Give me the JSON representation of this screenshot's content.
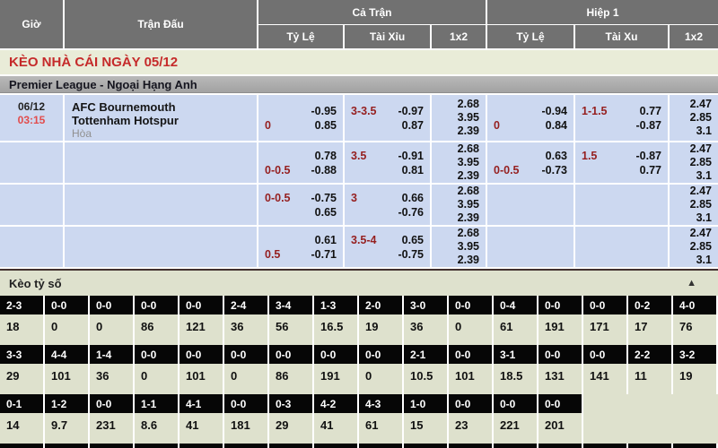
{
  "table_header": {
    "gio": "Giờ",
    "tran_dau": "Trận Đấu",
    "ca_tran": "Cả Trận",
    "hiep1": "Hiệp 1",
    "ca_tran_sub": {
      "ty_le": "Tỷ Lệ",
      "tai_xiu": "Tài Xỉu",
      "x2": "1x2"
    },
    "hiep1_sub": {
      "ty_le": "Tỷ Lệ",
      "tai_xu": "Tài Xu",
      "x2": "1x2"
    }
  },
  "banner": {
    "title": "KÈO NHÀ CÁI NGÀY 05/12"
  },
  "league": {
    "name": "Premier League - Ngoại Hạng Anh"
  },
  "matches": {
    "rows": [
      {
        "date": "06/12",
        "time": "03:15",
        "home": "AFC Bournemouth",
        "away": "Tottenham Hotspur",
        "draw_label": "Hòa",
        "ft_hdp": {
          "l1_left": "",
          "l1_right": "-0.95",
          "l2_left": "0",
          "l2_right": "0.85"
        },
        "ft_ou": {
          "l1_left": "3-3.5",
          "l1_right": "-0.97",
          "l2_left": "",
          "l2_right": "0.87"
        },
        "ft_1x2": [
          "2.68",
          "3.95",
          "2.39"
        ],
        "h1_hdp": {
          "l1_left": "",
          "l1_right": "-0.94",
          "l2_left": "0",
          "l2_right": "0.84"
        },
        "h1_ou": {
          "l1_left": "1-1.5",
          "l1_right": "0.77",
          "l2_left": "",
          "l2_right": "-0.87"
        },
        "h1_1x2": [
          "2.47",
          "2.85",
          "3.1"
        ]
      },
      {
        "date": "",
        "time": "",
        "home": "",
        "away": "",
        "draw_label": "",
        "ft_hdp": {
          "l1_left": "",
          "l1_right": "0.78",
          "l2_left": "0-0.5",
          "l2_right": "-0.88"
        },
        "ft_ou": {
          "l1_left": "3.5",
          "l1_right": "-0.91",
          "l2_left": "",
          "l2_right": "0.81"
        },
        "ft_1x2": [
          "2.68",
          "3.95",
          "2.39"
        ],
        "h1_hdp": {
          "l1_left": "",
          "l1_right": "0.63",
          "l2_left": "0-0.5",
          "l2_right": "-0.73"
        },
        "h1_ou": {
          "l1_left": "1.5",
          "l1_right": "-0.87",
          "l2_left": "",
          "l2_right": "0.77"
        },
        "h1_1x2": [
          "2.47",
          "2.85",
          "3.1"
        ]
      },
      {
        "date": "",
        "time": "",
        "home": "",
        "away": "",
        "draw_label": "",
        "ft_hdp": {
          "l1_left": "0-0.5",
          "l1_right": "-0.75",
          "l2_left": "",
          "l2_right": "0.65"
        },
        "ft_ou": {
          "l1_left": "3",
          "l1_right": "0.66",
          "l2_left": "",
          "l2_right": "-0.76"
        },
        "ft_1x2": [
          "2.68",
          "3.95",
          "2.39"
        ],
        "h1_hdp": {
          "l1_left": "",
          "l1_right": "",
          "l2_left": "",
          "l2_right": ""
        },
        "h1_ou": {
          "l1_left": "",
          "l1_right": "",
          "l2_left": "",
          "l2_right": ""
        },
        "h1_1x2": [
          "2.47",
          "2.85",
          "3.1"
        ]
      },
      {
        "date": "",
        "time": "",
        "home": "",
        "away": "",
        "draw_label": "",
        "ft_hdp": {
          "l1_left": "",
          "l1_right": "0.61",
          "l2_left": "0.5",
          "l2_right": "-0.71"
        },
        "ft_ou": {
          "l1_left": "3.5-4",
          "l1_right": "0.65",
          "l2_left": "",
          "l2_right": "-0.75"
        },
        "ft_1x2": [
          "2.68",
          "3.95",
          "2.39"
        ],
        "h1_hdp": {
          "l1_left": "",
          "l1_right": "",
          "l2_left": "",
          "l2_right": ""
        },
        "h1_ou": {
          "l1_left": "",
          "l1_right": "",
          "l2_left": "",
          "l2_right": ""
        },
        "h1_1x2": [
          "2.47",
          "2.85",
          "3.1"
        ]
      }
    ]
  },
  "score_section": {
    "title": "Kèo tỷ số",
    "collapse_icon": "▲",
    "rows": [
      {
        "scores": [
          "2-3",
          "0-0",
          "0-0",
          "0-0",
          "0-0",
          "2-4",
          "3-4",
          "1-3",
          "2-0",
          "3-0",
          "0-0",
          "0-4",
          "0-0",
          "0-0",
          "0-2",
          "4-0"
        ],
        "values": [
          "18",
          "0",
          "0",
          "86",
          "121",
          "36",
          "56",
          "16.5",
          "19",
          "36",
          "0",
          "61",
          "191",
          "171",
          "17",
          "76"
        ]
      },
      {
        "scores": [
          "3-3",
          "4-4",
          "1-4",
          "0-0",
          "0-0",
          "0-0",
          "0-0",
          "0-0",
          "0-0",
          "2-1",
          "0-0",
          "3-1",
          "0-0",
          "0-0",
          "2-2",
          "3-2"
        ],
        "values": [
          "29",
          "101",
          "36",
          "0",
          "101",
          "0",
          "86",
          "191",
          "0",
          "10.5",
          "101",
          "18.5",
          "131",
          "141",
          "11",
          "19"
        ]
      },
      {
        "scores": [
          "0-1",
          "1-2",
          "0-0",
          "1-1",
          "4-1",
          "0-0",
          "0-3",
          "4-2",
          "4-3",
          "1-0",
          "0-0",
          "0-0",
          "0-0"
        ],
        "values": [
          "14",
          "9.7",
          "231",
          "8.6",
          "41",
          "181",
          "29",
          "41",
          "61",
          "15",
          "23",
          "221",
          "201"
        ]
      }
    ]
  },
  "colors": {
    "header_bg": "#717171",
    "banner_bg": "#e9ecd8",
    "banner_text": "#c52a2a",
    "league_bg": "#a9a9a9",
    "odds_cell_bg": "#ccd8f0",
    "handicap_red": "#951f1f",
    "time_red": "#e24c4c",
    "score_section_bg": "#dee1cd",
    "score_cell_bg": "#060606"
  }
}
